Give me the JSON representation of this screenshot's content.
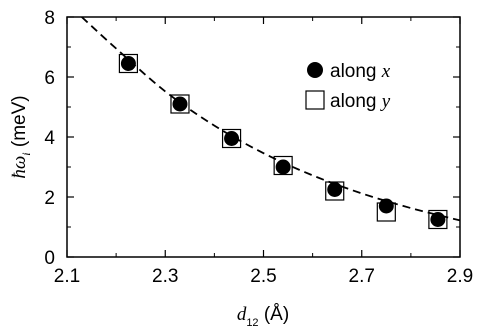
{
  "chart_data": {
    "type": "scatter",
    "title": "",
    "xlim": [
      2.1,
      2.9
    ],
    "ylim": [
      0,
      8
    ],
    "x_ticks": [
      2.1,
      2.3,
      2.5,
      2.7,
      2.9
    ],
    "x_tick_labels": [
      "2.1",
      "2.3",
      "2.5",
      "2.7",
      "2.9"
    ],
    "x_minor_ticks": [
      2.2,
      2.4,
      2.6,
      2.8
    ],
    "y_ticks": [
      0,
      2,
      4,
      6,
      8
    ],
    "y_tick_labels": [
      "0",
      "2",
      "4",
      "6",
      "8"
    ],
    "y_minor_ticks": [
      1,
      3,
      5,
      7
    ],
    "xlabel": {
      "symbol": "d",
      "subscript": "12",
      "unit": "(Å)"
    },
    "ylabel": {
      "symbol": "ħω",
      "subscript": "i",
      "unit": "(meV)"
    },
    "grid": false,
    "legend_placement": "top-right",
    "series": [
      {
        "name": "along x",
        "legend_text": "along",
        "legend_var": "x",
        "marker": "filled-circle",
        "color": "#000000",
        "x": [
          2.225,
          2.33,
          2.435,
          2.54,
          2.645,
          2.75,
          2.855
        ],
        "y": [
          6.45,
          5.1,
          3.95,
          3.0,
          2.25,
          1.7,
          1.25
        ]
      },
      {
        "name": "along y",
        "legend_text": "along",
        "legend_var": "y",
        "marker": "open-square",
        "color": "#000000",
        "x": [
          2.225,
          2.33,
          2.435,
          2.54,
          2.645,
          2.75,
          2.855
        ],
        "y": [
          6.45,
          5.1,
          3.95,
          3.05,
          2.2,
          1.5,
          1.25
        ]
      }
    ],
    "fit_line": {
      "style": "dashed",
      "color": "#000000",
      "x": [
        2.13,
        2.2,
        2.3,
        2.4,
        2.5,
        2.6,
        2.7,
        2.8,
        2.9
      ],
      "y": [
        8.0,
        6.95,
        5.52,
        4.38,
        3.46,
        2.72,
        2.12,
        1.63,
        1.22
      ]
    }
  }
}
